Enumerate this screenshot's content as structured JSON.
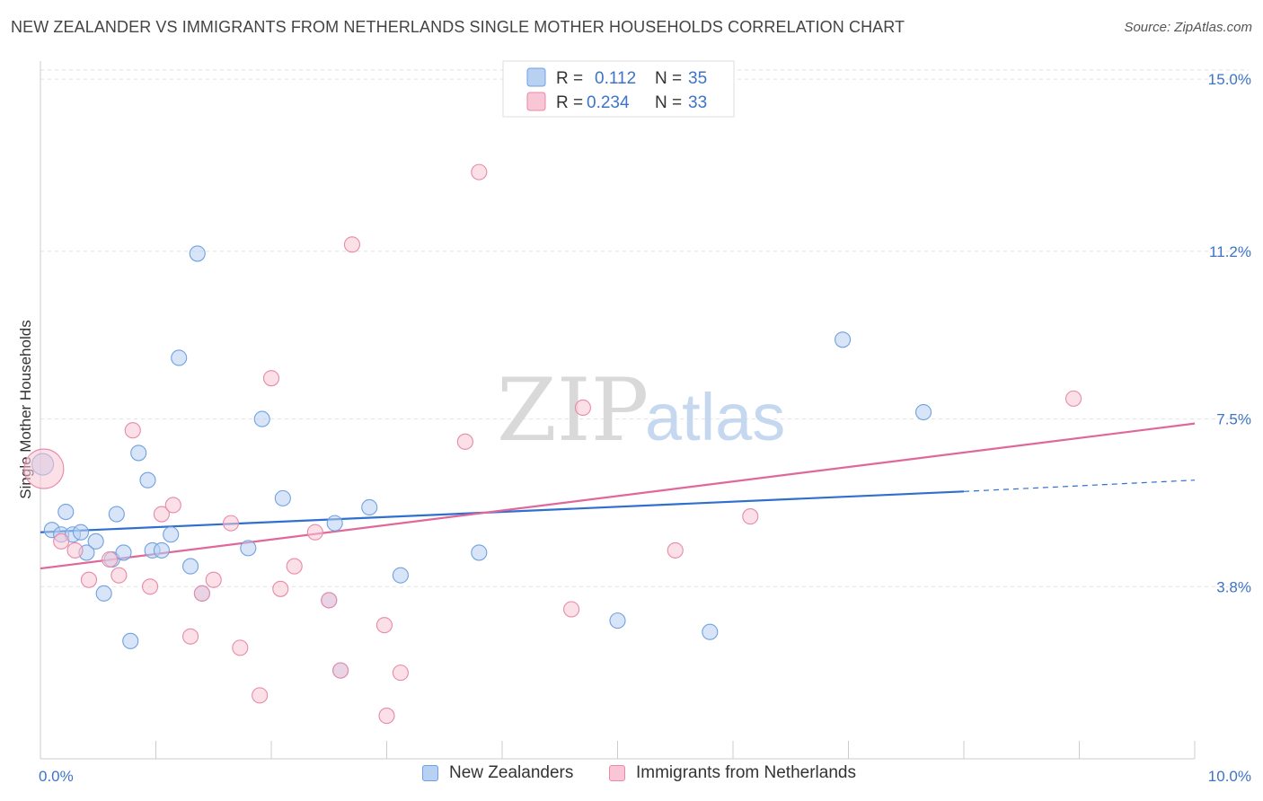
{
  "title": "NEW ZEALANDER VS IMMIGRANTS FROM NETHERLANDS SINGLE MOTHER HOUSEHOLDS CORRELATION CHART",
  "source": "Source: ZipAtlas.com",
  "watermark": {
    "zip": "ZIP",
    "atlas": "atlas"
  },
  "legend": {
    "r_label": "R =",
    "n_label": "N =",
    "items": [
      {
        "name": "New Zealanders",
        "r": "0.112",
        "n": "35",
        "color": "#6fa1e0",
        "fill": "#b8d0f2"
      },
      {
        "name": "Immigrants from Netherlands",
        "r": "0.234",
        "n": "33",
        "color": "#e889a8",
        "fill": "#f8c6d5"
      }
    ]
  },
  "chart_data": {
    "type": "scatter",
    "ylabel": "Single Mother Households",
    "xlabel": "",
    "xlim": [
      0,
      10
    ],
    "ylim": [
      0,
      15.4
    ],
    "x_tick_labels": [
      "0.0%",
      "10.0%"
    ],
    "y_ticks": [
      {
        "value": 3.8,
        "label": "3.8%"
      },
      {
        "value": 7.5,
        "label": "7.5%"
      },
      {
        "value": 11.2,
        "label": "11.2%"
      },
      {
        "value": 15.0,
        "label": "15.0%"
      }
    ],
    "grid": true,
    "series": [
      {
        "name": "New Zealanders",
        "color": "#6fa1e0",
        "fill": "#b8d0f2",
        "trend": {
          "x0": 0,
          "y0": 5.0,
          "x1": 8.0,
          "y1": 5.9,
          "dash_to_x": 10.0,
          "dash_to_y": 6.15
        },
        "points": [
          [
            0.02,
            6.5
          ],
          [
            0.1,
            5.05
          ],
          [
            0.18,
            4.95
          ],
          [
            0.22,
            5.45
          ],
          [
            0.28,
            4.95
          ],
          [
            0.35,
            5.0
          ],
          [
            0.4,
            4.55
          ],
          [
            0.48,
            4.8
          ],
          [
            0.55,
            3.65
          ],
          [
            0.62,
            4.4
          ],
          [
            0.66,
            5.4
          ],
          [
            0.72,
            4.55
          ],
          [
            0.78,
            2.6
          ],
          [
            0.85,
            6.75
          ],
          [
            0.93,
            6.15
          ],
          [
            0.97,
            4.6
          ],
          [
            1.05,
            4.6
          ],
          [
            1.13,
            4.95
          ],
          [
            1.2,
            8.85
          ],
          [
            1.3,
            4.25
          ],
          [
            1.36,
            11.15
          ],
          [
            1.4,
            3.65
          ],
          [
            1.8,
            4.65
          ],
          [
            1.92,
            7.5
          ],
          [
            2.1,
            5.75
          ],
          [
            2.5,
            3.5
          ],
          [
            2.55,
            5.2
          ],
          [
            2.6,
            1.95
          ],
          [
            2.85,
            5.55
          ],
          [
            3.12,
            4.05
          ],
          [
            3.8,
            4.55
          ],
          [
            5.0,
            3.05
          ],
          [
            5.8,
            2.8
          ],
          [
            6.95,
            9.25
          ],
          [
            7.65,
            7.65
          ]
        ]
      },
      {
        "name": "Immigrants from Netherlands",
        "color": "#e889a8",
        "fill": "#f8c6d5",
        "trend": {
          "x0": 0,
          "y0": 4.2,
          "x1": 10.0,
          "y1": 7.4
        },
        "points": [
          [
            0.03,
            6.4
          ],
          [
            0.18,
            4.8
          ],
          [
            0.3,
            4.6
          ],
          [
            0.42,
            3.95
          ],
          [
            0.6,
            4.4
          ],
          [
            0.68,
            4.05
          ],
          [
            0.8,
            7.25
          ],
          [
            0.95,
            3.8
          ],
          [
            1.05,
            5.4
          ],
          [
            1.15,
            5.6
          ],
          [
            1.3,
            2.7
          ],
          [
            1.4,
            3.65
          ],
          [
            1.5,
            3.95
          ],
          [
            1.65,
            5.2
          ],
          [
            1.73,
            2.45
          ],
          [
            1.9,
            1.4
          ],
          [
            2.0,
            8.4
          ],
          [
            2.08,
            3.75
          ],
          [
            2.2,
            4.25
          ],
          [
            2.38,
            5.0
          ],
          [
            2.5,
            3.5
          ],
          [
            2.6,
            1.95
          ],
          [
            2.7,
            11.35
          ],
          [
            2.98,
            2.95
          ],
          [
            3.0,
            0.95
          ],
          [
            3.12,
            1.9
          ],
          [
            3.68,
            7.0
          ],
          [
            3.8,
            12.95
          ],
          [
            4.6,
            3.3
          ],
          [
            4.7,
            7.75
          ],
          [
            5.5,
            4.6
          ],
          [
            6.15,
            5.35
          ],
          [
            8.95,
            7.95
          ]
        ]
      }
    ]
  }
}
